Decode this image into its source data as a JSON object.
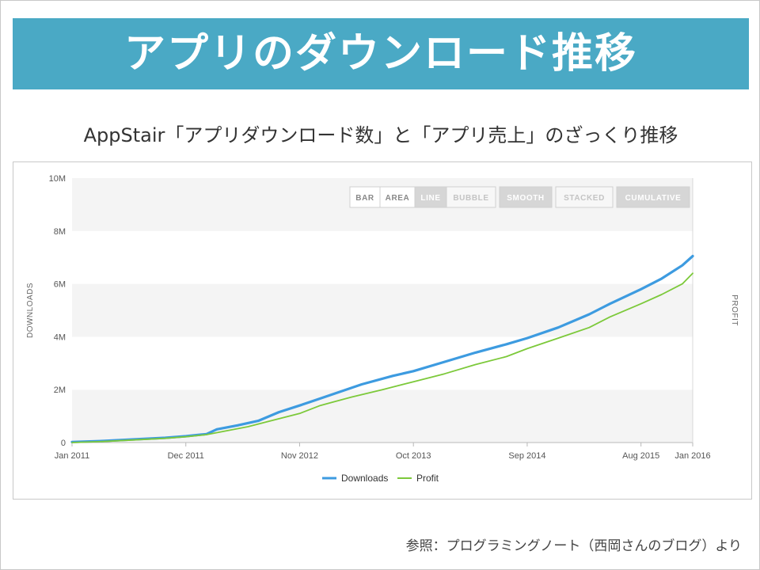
{
  "slide": {
    "title": "アプリのダウンロード推移",
    "subtitle": "AppStair「アプリダウンロード数」と「アプリ売上」のざっくり推移",
    "source": "参照：プログラミングノート（西岡さんのブログ）より"
  },
  "colors": {
    "title_bar": "#4aa9c5",
    "downloads": "#3d9be0",
    "profit": "#7cc93a"
  },
  "toolbar": {
    "buttons": [
      {
        "label": "BAR",
        "state": "normal"
      },
      {
        "label": "AREA",
        "state": "normal"
      },
      {
        "label": "LINE",
        "state": "active"
      },
      {
        "label": "BUBBLE",
        "state": "disabled"
      },
      {
        "label": "SMOOTH",
        "state": "active"
      },
      {
        "label": "STACKED",
        "state": "disabled"
      },
      {
        "label": "CUMULATIVE",
        "state": "active"
      }
    ]
  },
  "chart_data": {
    "type": "line",
    "title": "",
    "xlabel": "",
    "ylabel": "DOWNLOADS",
    "y2label": "PROFIT",
    "ylim": [
      0,
      10000000
    ],
    "y_ticks": [
      0,
      2000000,
      4000000,
      6000000,
      8000000,
      10000000
    ],
    "y_tick_labels": [
      "0",
      "2M",
      "4M",
      "6M",
      "8M",
      "10M"
    ],
    "x_range": [
      "2011-01",
      "2016-01"
    ],
    "x_ticks": [
      "2011-01",
      "2011-12",
      "2012-11",
      "2013-10",
      "2014-09",
      "2015-08",
      "2016-01"
    ],
    "x_tick_labels": [
      "Jan 2011",
      "Dec 2011",
      "Nov 2012",
      "Oct 2013",
      "Sep 2014",
      "Aug 2015",
      "Jan 2016"
    ],
    "grid": "horizontal alternating bands",
    "legend_position": "bottom-center",
    "series": [
      {
        "name": "Downloads",
        "color": "#3d9be0",
        "points": [
          [
            "2011-01",
            20000
          ],
          [
            "2011-04",
            60000
          ],
          [
            "2011-07",
            120000
          ],
          [
            "2011-10",
            180000
          ],
          [
            "2011-12",
            240000
          ],
          [
            "2012-02",
            320000
          ],
          [
            "2012-03",
            500000
          ],
          [
            "2012-05",
            650000
          ],
          [
            "2012-07",
            820000
          ],
          [
            "2012-09",
            1150000
          ],
          [
            "2012-11",
            1400000
          ],
          [
            "2013-02",
            1800000
          ],
          [
            "2013-05",
            2200000
          ],
          [
            "2013-08",
            2520000
          ],
          [
            "2013-10",
            2700000
          ],
          [
            "2014-01",
            3050000
          ],
          [
            "2014-04",
            3400000
          ],
          [
            "2014-07",
            3720000
          ],
          [
            "2014-09",
            3950000
          ],
          [
            "2014-12",
            4350000
          ],
          [
            "2015-03",
            4850000
          ],
          [
            "2015-05",
            5250000
          ],
          [
            "2015-08",
            5800000
          ],
          [
            "2015-10",
            6200000
          ],
          [
            "2015-12",
            6700000
          ],
          [
            "2016-01",
            7050000
          ]
        ]
      },
      {
        "name": "Profit",
        "color": "#7cc93a",
        "points": [
          [
            "2011-01",
            0
          ],
          [
            "2011-04",
            40000
          ],
          [
            "2011-07",
            100000
          ],
          [
            "2011-10",
            160000
          ],
          [
            "2011-12",
            220000
          ],
          [
            "2012-02",
            300000
          ],
          [
            "2012-04",
            450000
          ],
          [
            "2012-06",
            600000
          ],
          [
            "2012-08",
            800000
          ],
          [
            "2012-11",
            1100000
          ],
          [
            "2013-01",
            1400000
          ],
          [
            "2013-04",
            1720000
          ],
          [
            "2013-07",
            2000000
          ],
          [
            "2013-10",
            2300000
          ],
          [
            "2014-01",
            2600000
          ],
          [
            "2014-04",
            2950000
          ],
          [
            "2014-07",
            3250000
          ],
          [
            "2014-09",
            3550000
          ],
          [
            "2014-12",
            3950000
          ],
          [
            "2015-03",
            4350000
          ],
          [
            "2015-05",
            4750000
          ],
          [
            "2015-08",
            5250000
          ],
          [
            "2015-10",
            5600000
          ],
          [
            "2015-12",
            6000000
          ],
          [
            "2016-01",
            6400000
          ]
        ]
      }
    ]
  }
}
